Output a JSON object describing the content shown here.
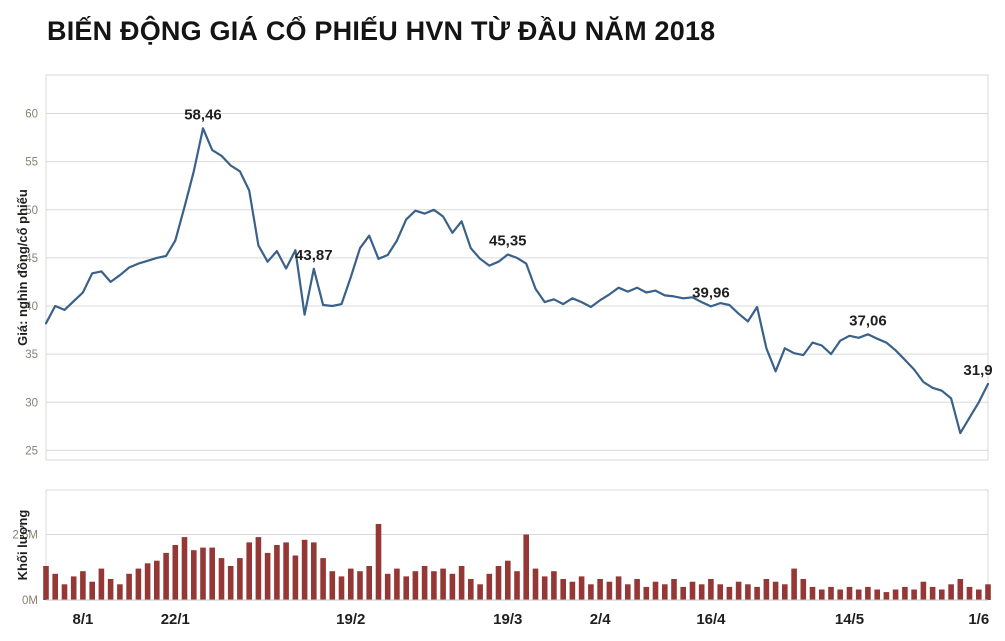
{
  "title": "BIẾN ĐỘNG GIÁ CỔ PHIẾU HVN TỪ ĐẦU NĂM 2018",
  "colors": {
    "line": "#3a6189",
    "bar": "#953735",
    "grid": "#d9d9d9",
    "axis_line": "#c6c6c6",
    "axis_tick_text": "#8a8072",
    "label_text": "#1f1f1f",
    "background": "#ffffff"
  },
  "chart_data": [
    {
      "type": "line",
      "name": "price",
      "ylabel": "Giá: nghìn đồng/cổ phiếu",
      "ylim": [
        24,
        64
      ],
      "yticks": [
        25,
        30,
        35,
        40,
        45,
        50,
        55,
        60
      ],
      "grid": true,
      "values": [
        38.2,
        40.0,
        39.6,
        40.5,
        41.4,
        43.4,
        43.6,
        42.5,
        43.2,
        44.0,
        44.4,
        44.7,
        45.0,
        45.2,
        46.8,
        50.3,
        54.0,
        58.46,
        56.2,
        55.6,
        54.6,
        54.0,
        52.0,
        46.3,
        44.6,
        45.7,
        43.9,
        45.8,
        39.1,
        43.87,
        40.1,
        40.0,
        40.2,
        43.0,
        46.0,
        47.3,
        44.9,
        45.3,
        46.8,
        49.0,
        49.9,
        49.6,
        50.0,
        49.3,
        47.6,
        48.8,
        46.0,
        44.9,
        44.2,
        44.6,
        45.35,
        45.0,
        44.4,
        41.8,
        40.4,
        40.7,
        40.2,
        40.8,
        40.4,
        39.9,
        40.6,
        41.2,
        41.9,
        41.5,
        41.9,
        41.4,
        41.6,
        41.1,
        41.0,
        40.8,
        40.9,
        40.4,
        39.96,
        40.3,
        40.1,
        39.2,
        38.4,
        39.9,
        35.6,
        33.2,
        35.6,
        35.1,
        34.9,
        36.2,
        35.9,
        35.0,
        36.4,
        36.9,
        36.7,
        37.06,
        36.6,
        36.2,
        35.4,
        34.4,
        33.4,
        32.1,
        31.5,
        31.2,
        30.4,
        26.8,
        28.4,
        30.0,
        31.9
      ],
      "annotations": [
        {
          "index": 17,
          "label": "58,46"
        },
        {
          "index": 29,
          "label": "43,87"
        },
        {
          "index": 50,
          "label": "45,35"
        },
        {
          "index": 72,
          "label": "39,96"
        },
        {
          "index": 89,
          "label": "37,06"
        },
        {
          "index": 102,
          "label": "31,9",
          "dx": -10
        }
      ],
      "xticks": [
        {
          "index": 4,
          "label": "8/1"
        },
        {
          "index": 14,
          "label": "22/1"
        },
        {
          "index": 33,
          "label": "19/2"
        },
        {
          "index": 50,
          "label": "19/3"
        },
        {
          "index": 60,
          "label": "2/4"
        },
        {
          "index": 72,
          "label": "16/4"
        },
        {
          "index": 87,
          "label": "14/5"
        },
        {
          "index": 101,
          "label": "1/6"
        }
      ]
    },
    {
      "type": "bar",
      "name": "volume",
      "ylabel": "Khối lượng",
      "ylim": [
        0,
        4.2
      ],
      "yticks": [
        {
          "value": 2.5,
          "label": "2.5M"
        },
        {
          "value": 0,
          "label": "0M"
        }
      ],
      "values": [
        1.3,
        1.0,
        0.6,
        0.9,
        1.1,
        0.7,
        1.2,
        0.8,
        0.6,
        1.0,
        1.2,
        1.4,
        1.5,
        1.8,
        2.1,
        2.4,
        1.9,
        2.0,
        2.0,
        1.6,
        1.3,
        1.6,
        2.2,
        2.4,
        1.8,
        2.1,
        2.2,
        1.7,
        2.3,
        2.2,
        1.6,
        1.1,
        0.9,
        1.2,
        1.1,
        1.3,
        2.9,
        1.0,
        1.2,
        0.9,
        1.1,
        1.3,
        1.1,
        1.2,
        1.0,
        1.3,
        0.8,
        0.6,
        1.0,
        1.3,
        1.5,
        1.1,
        2.5,
        1.2,
        0.9,
        1.1,
        0.8,
        0.7,
        0.9,
        0.6,
        0.8,
        0.7,
        0.9,
        0.6,
        0.8,
        0.5,
        0.7,
        0.6,
        0.8,
        0.5,
        0.7,
        0.6,
        0.8,
        0.6,
        0.5,
        0.7,
        0.6,
        0.5,
        0.8,
        0.7,
        0.6,
        1.2,
        0.8,
        0.5,
        0.4,
        0.5,
        0.4,
        0.5,
        0.4,
        0.5,
        0.4,
        0.3,
        0.4,
        0.5,
        0.4,
        0.7,
        0.5,
        0.4,
        0.6,
        0.8,
        0.5,
        0.4,
        0.6
      ]
    }
  ]
}
